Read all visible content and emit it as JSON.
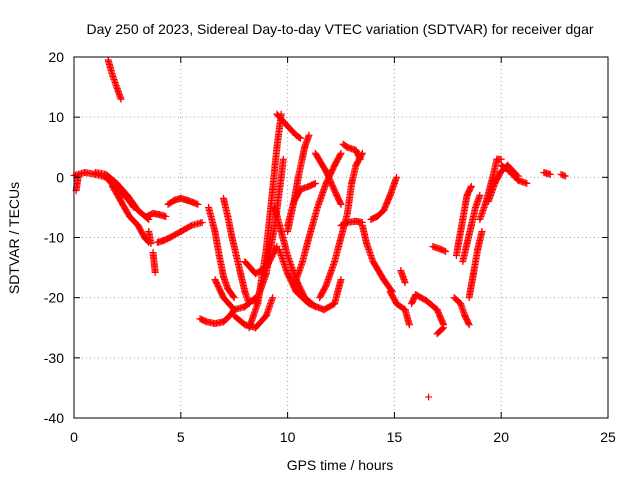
{
  "chart_data": {
    "type": "scatter",
    "title": "Day 250 of 2023, Sidereal Day-to-day VTEC variation (SDTVAR) for receiver dgar",
    "xlabel": "GPS time / hours",
    "ylabel": "SDTVAR / TECUs",
    "xlim": [
      0,
      25
    ],
    "ylim": [
      -40,
      20
    ],
    "xticks": [
      0,
      5,
      10,
      15,
      20,
      25
    ],
    "yticks": [
      -40,
      -30,
      -20,
      -10,
      0,
      10,
      20
    ],
    "grid": true,
    "marker": "+",
    "series_color": "#ff0000",
    "segments": [
      [
        [
          0,
          0.3
        ],
        [
          0.5,
          0.8
        ],
        [
          1.0,
          0.5
        ],
        [
          1.5,
          0
        ],
        [
          2.0,
          -2.0
        ],
        [
          2.5,
          -3.5
        ],
        [
          2.8,
          -5.0
        ]
      ],
      [
        [
          0.1,
          -2.2
        ],
        [
          0.2,
          0.2
        ]
      ],
      [
        [
          1.6,
          19.5
        ],
        [
          1.8,
          17.0
        ],
        [
          2.0,
          15.0
        ],
        [
          2.2,
          13.0
        ]
      ],
      [
        [
          1.0,
          0.8
        ],
        [
          1.5,
          0.5
        ],
        [
          2.0,
          -1.0
        ],
        [
          2.5,
          -3.0
        ],
        [
          3.0,
          -5.5
        ],
        [
          3.5,
          -7.0
        ]
      ],
      [
        [
          1.8,
          -1.5
        ],
        [
          2.2,
          -4.0
        ],
        [
          2.6,
          -6.5
        ],
        [
          3.0,
          -8.0
        ],
        [
          3.3,
          -10.0
        ],
        [
          3.5,
          -10.8
        ]
      ],
      [
        [
          3.4,
          -6.5
        ],
        [
          3.7,
          -6.0
        ],
        [
          4.0,
          -6.2
        ],
        [
          4.3,
          -6.5
        ]
      ],
      [
        [
          3.5,
          -9.0
        ],
        [
          3.6,
          -11.0
        ]
      ],
      [
        [
          3.7,
          -12.5
        ],
        [
          3.8,
          -15.8
        ]
      ],
      [
        [
          3.9,
          -10.8
        ],
        [
          4.2,
          -10.5
        ],
        [
          4.5,
          -10.0
        ],
        [
          5.0,
          -9.0
        ],
        [
          5.5,
          -8.0
        ],
        [
          6.0,
          -7.5
        ]
      ],
      [
        [
          4.4,
          -4.5
        ],
        [
          4.7,
          -3.8
        ],
        [
          5.0,
          -3.5
        ],
        [
          5.3,
          -3.8
        ],
        [
          5.6,
          -4.2
        ],
        [
          5.8,
          -4.5
        ]
      ],
      [
        [
          5.9,
          -23.5
        ],
        [
          6.2,
          -24.0
        ],
        [
          6.6,
          -24.3
        ],
        [
          7.0,
          -24.0
        ],
        [
          7.3,
          -23.0
        ],
        [
          7.5,
          -22.0
        ]
      ],
      [
        [
          6.3,
          -5.0
        ],
        [
          6.6,
          -9.0
        ],
        [
          6.8,
          -13.0
        ],
        [
          7.0,
          -16.5
        ],
        [
          7.2,
          -18.5
        ],
        [
          7.5,
          -20.0
        ]
      ],
      [
        [
          6.6,
          -17.0
        ],
        [
          7.0,
          -20.0
        ],
        [
          7.5,
          -22.0
        ],
        [
          8.0,
          -21.5
        ],
        [
          8.5,
          -20.0
        ]
      ],
      [
        [
          7.0,
          -3.5
        ],
        [
          7.2,
          -6.5
        ],
        [
          7.4,
          -10.0
        ],
        [
          7.6,
          -13.0
        ],
        [
          7.8,
          -16.0
        ],
        [
          8.0,
          -19.0
        ],
        [
          8.2,
          -21.0
        ]
      ],
      [
        [
          7.5,
          -23.0
        ],
        [
          8.0,
          -24.5
        ],
        [
          8.5,
          -25.0
        ],
        [
          9.0,
          -23.0
        ],
        [
          9.3,
          -20.0
        ]
      ],
      [
        [
          8.0,
          -14.0
        ],
        [
          8.5,
          -16.0
        ],
        [
          9.0,
          -15.0
        ],
        [
          9.5,
          -11.5
        ]
      ],
      [
        [
          8.2,
          -25.0
        ],
        [
          8.6,
          -21.0
        ],
        [
          9.0,
          -12.0
        ],
        [
          9.3,
          -2.0
        ],
        [
          9.5,
          5.0
        ],
        [
          9.7,
          10.5
        ]
      ],
      [
        [
          8.5,
          -21.0
        ],
        [
          9.0,
          -16.0
        ],
        [
          9.4,
          -8.0
        ],
        [
          9.7,
          0.0
        ],
        [
          9.8,
          3.0
        ]
      ],
      [
        [
          9.5,
          10.5
        ],
        [
          10.0,
          8.5
        ],
        [
          10.4,
          7.0
        ],
        [
          10.6,
          6.5
        ]
      ],
      [
        [
          9.4,
          -5.0
        ],
        [
          9.7,
          -9.0
        ],
        [
          10.0,
          -13.0
        ],
        [
          10.4,
          -17.0
        ],
        [
          10.8,
          -20.0
        ],
        [
          11.3,
          -21.5
        ]
      ],
      [
        [
          9.6,
          -12.0
        ],
        [
          10.0,
          -16.0
        ],
        [
          10.4,
          -19.0
        ],
        [
          11.0,
          -21.0
        ],
        [
          11.7,
          -22.0
        ],
        [
          12.2,
          -21.0
        ],
        [
          12.5,
          -17.0
        ]
      ],
      [
        [
          10.0,
          -8.0
        ],
        [
          10.3,
          -4.0
        ],
        [
          10.5,
          0.0
        ],
        [
          10.8,
          5.0
        ],
        [
          11.0,
          7.0
        ]
      ],
      [
        [
          10.0,
          -9.0
        ],
        [
          10.3,
          -4.0
        ],
        [
          10.6,
          -2.0
        ],
        [
          11.0,
          -1.5
        ],
        [
          11.3,
          -1.0
        ]
      ],
      [
        [
          10.3,
          -18.0
        ],
        [
          10.7,
          -14.0
        ],
        [
          11.0,
          -10.0
        ],
        [
          11.4,
          -5.0
        ],
        [
          11.8,
          -1.0
        ],
        [
          12.2,
          2.0
        ],
        [
          12.5,
          4.0
        ]
      ],
      [
        [
          11.5,
          -20.0
        ],
        [
          11.8,
          -18.0
        ],
        [
          12.2,
          -14.0
        ],
        [
          12.5,
          -10.0
        ],
        [
          12.8,
          -6.0
        ],
        [
          13.0,
          -1.0
        ],
        [
          13.2,
          2.0
        ],
        [
          13.5,
          4.0
        ]
      ],
      [
        [
          11.3,
          4.0
        ],
        [
          11.8,
          1.0
        ],
        [
          12.3,
          -3.0
        ],
        [
          12.5,
          -4.5
        ]
      ],
      [
        [
          12.5,
          -8.0
        ],
        [
          12.8,
          -7.5
        ],
        [
          13.2,
          -7.3
        ],
        [
          13.5,
          -7.5
        ]
      ],
      [
        [
          12.6,
          5.5
        ],
        [
          12.8,
          5.0
        ],
        [
          13.2,
          4.5
        ],
        [
          13.4,
          3.0
        ]
      ],
      [
        [
          13.5,
          -8.0
        ],
        [
          13.7,
          -11.0
        ],
        [
          14.0,
          -14.0
        ],
        [
          14.5,
          -17.0
        ],
        [
          14.9,
          -19.0
        ]
      ],
      [
        [
          13.9,
          -7.0
        ],
        [
          14.2,
          -6.5
        ],
        [
          14.5,
          -5.5
        ],
        [
          14.8,
          -3.0
        ],
        [
          15.0,
          -1.0
        ],
        [
          15.1,
          0.0
        ]
      ],
      [
        [
          14.8,
          -19.0
        ],
        [
          15.1,
          -21.0
        ],
        [
          15.5,
          -22.0
        ],
        [
          15.7,
          -24.5
        ]
      ],
      [
        [
          15.3,
          -15.5
        ],
        [
          15.5,
          -17.5
        ]
      ],
      [
        [
          15.8,
          -21.0
        ],
        [
          16.0,
          -19.5
        ],
        [
          16.5,
          -20.5
        ],
        [
          17.0,
          -22.0
        ],
        [
          17.3,
          -24.5
        ]
      ],
      [
        [
          17.0,
          -26.0
        ],
        [
          17.3,
          -25.0
        ]
      ],
      [
        [
          16.6,
          -36.5
        ]
      ],
      [
        [
          16.8,
          -11.5
        ],
        [
          17.2,
          -12.0
        ],
        [
          17.4,
          -12.3
        ]
      ],
      [
        [
          17.8,
          -20.0
        ],
        [
          18.1,
          -21.0
        ],
        [
          18.3,
          -23.0
        ],
        [
          18.5,
          -24.5
        ]
      ],
      [
        [
          17.9,
          -13.0
        ],
        [
          18.0,
          -11.0
        ],
        [
          18.2,
          -7.0
        ],
        [
          18.4,
          -3.0
        ],
        [
          18.6,
          -1.5
        ]
      ],
      [
        [
          18.2,
          -14.0
        ],
        [
          18.4,
          -11.0
        ],
        [
          18.6,
          -8.0
        ],
        [
          18.8,
          -5.0
        ],
        [
          19.0,
          -3.0
        ]
      ],
      [
        [
          18.5,
          -20.0
        ],
        [
          18.7,
          -16.0
        ],
        [
          18.9,
          -12.0
        ],
        [
          19.1,
          -9.0
        ]
      ],
      [
        [
          19.0,
          -7.0
        ],
        [
          19.3,
          -4.0
        ],
        [
          19.6,
          0.0
        ],
        [
          19.8,
          3.0
        ],
        [
          20.0,
          3.0
        ]
      ],
      [
        [
          19.4,
          -4.0
        ],
        [
          19.7,
          -1.0
        ],
        [
          20.0,
          1.0
        ],
        [
          20.3,
          2.0
        ],
        [
          20.7,
          0.5
        ]
      ],
      [
        [
          20.0,
          2.0
        ],
        [
          20.4,
          1.0
        ],
        [
          20.8,
          -0.5
        ],
        [
          21.2,
          -1.0
        ]
      ],
      [
        [
          20.5,
          0.5
        ],
        [
          20.8,
          0.2
        ]
      ],
      [
        [
          22.0,
          0.8
        ],
        [
          22.3,
          0.5
        ]
      ],
      [
        [
          22.8,
          0.5
        ],
        [
          23.0,
          0.2
        ]
      ]
    ]
  }
}
